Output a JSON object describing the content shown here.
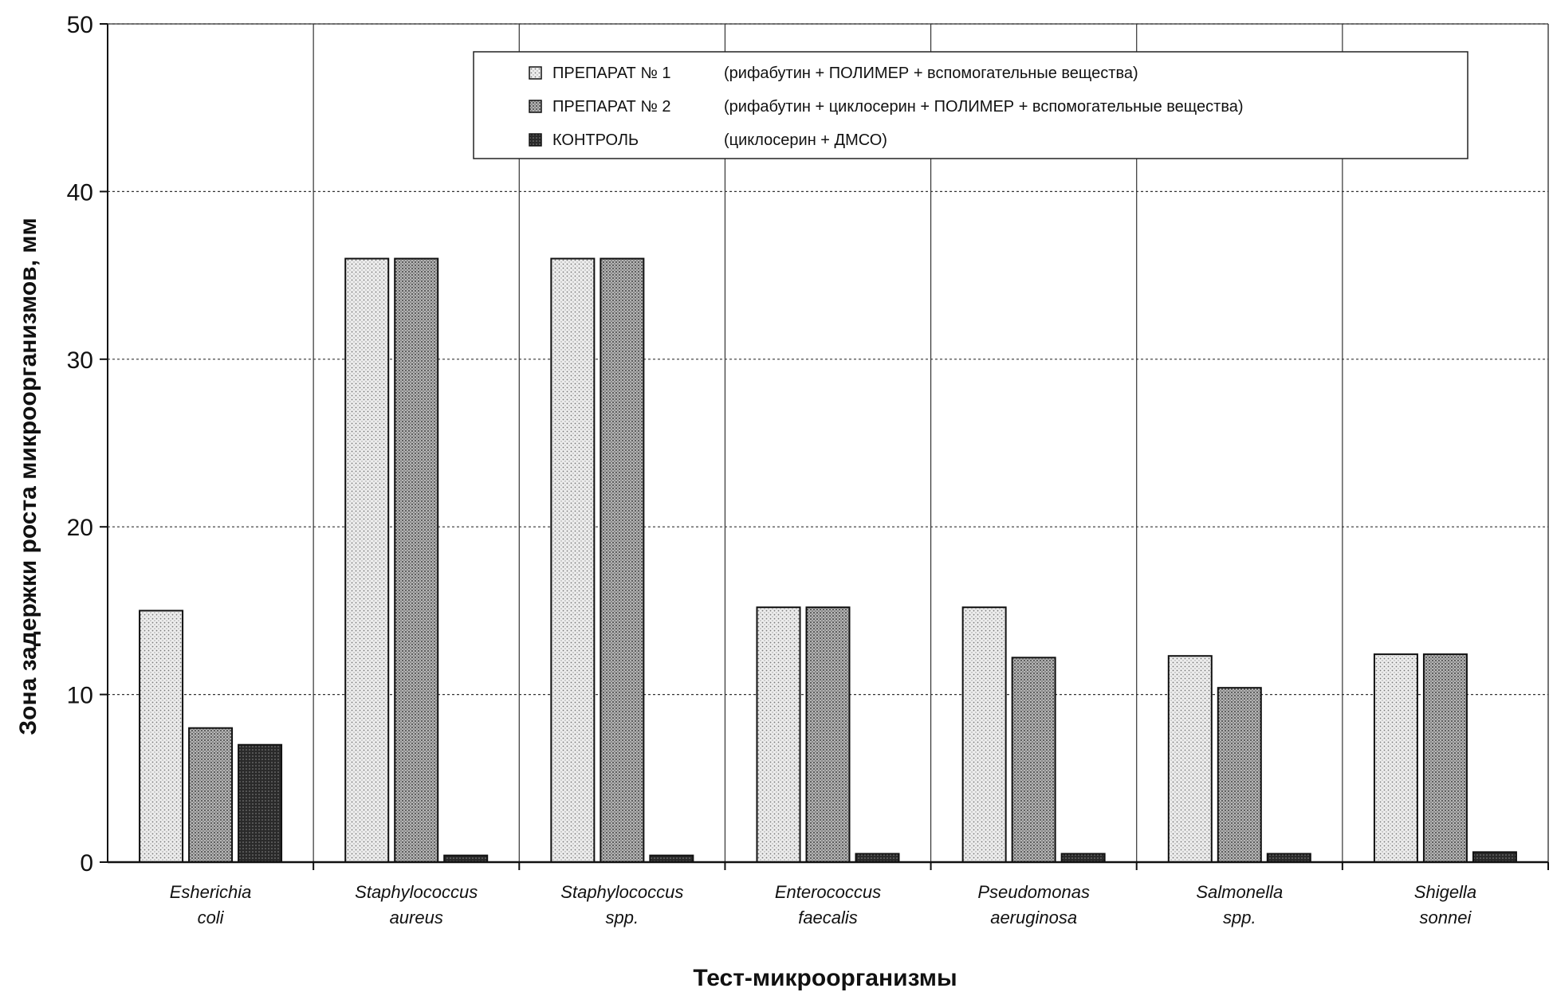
{
  "chart_data": {
    "type": "bar",
    "title": "",
    "xlabel": "Тест-микроорганизмы",
    "ylabel": "Зона задержки роста микроорганизмов, мм",
    "ylim": [
      0,
      50
    ],
    "yticks": [
      0,
      10,
      20,
      30,
      40,
      50
    ],
    "grid": true,
    "legend_position": "top-right",
    "categories": [
      [
        "Esherichia",
        "coli"
      ],
      [
        "Staphylococcus",
        "aureus"
      ],
      [
        "Staphylococcus",
        "spp."
      ],
      [
        "Enterococcus",
        "faecalis"
      ],
      [
        "Pseudomonas",
        "aeruginosa"
      ],
      [
        "Salmonella",
        "spp."
      ],
      [
        "Shigella",
        "sonnei"
      ]
    ],
    "series": [
      {
        "name": "ПРЕПАРАТ № 1",
        "desc": "(рифабутин + ПОЛИМЕР + вспомогательные вещества)",
        "values": [
          15,
          36,
          36,
          15.2,
          15.2,
          12.3,
          12.4
        ],
        "color": "#e2e2e2"
      },
      {
        "name": "ПРЕПАРАТ № 2",
        "desc": "(рифабутин + циклосерин + ПОЛИМЕР + вспомогательные вещества)",
        "values": [
          8,
          36,
          36,
          15.2,
          12.2,
          10.4,
          12.4
        ],
        "color": "#a9a9a9"
      },
      {
        "name": "КОНТРОЛЬ",
        "desc": "(циклосерин + ДМСО)",
        "values": [
          7,
          0.4,
          0.4,
          0.5,
          0.5,
          0.5,
          0.6
        ],
        "color": "#3c3c3c"
      }
    ]
  }
}
